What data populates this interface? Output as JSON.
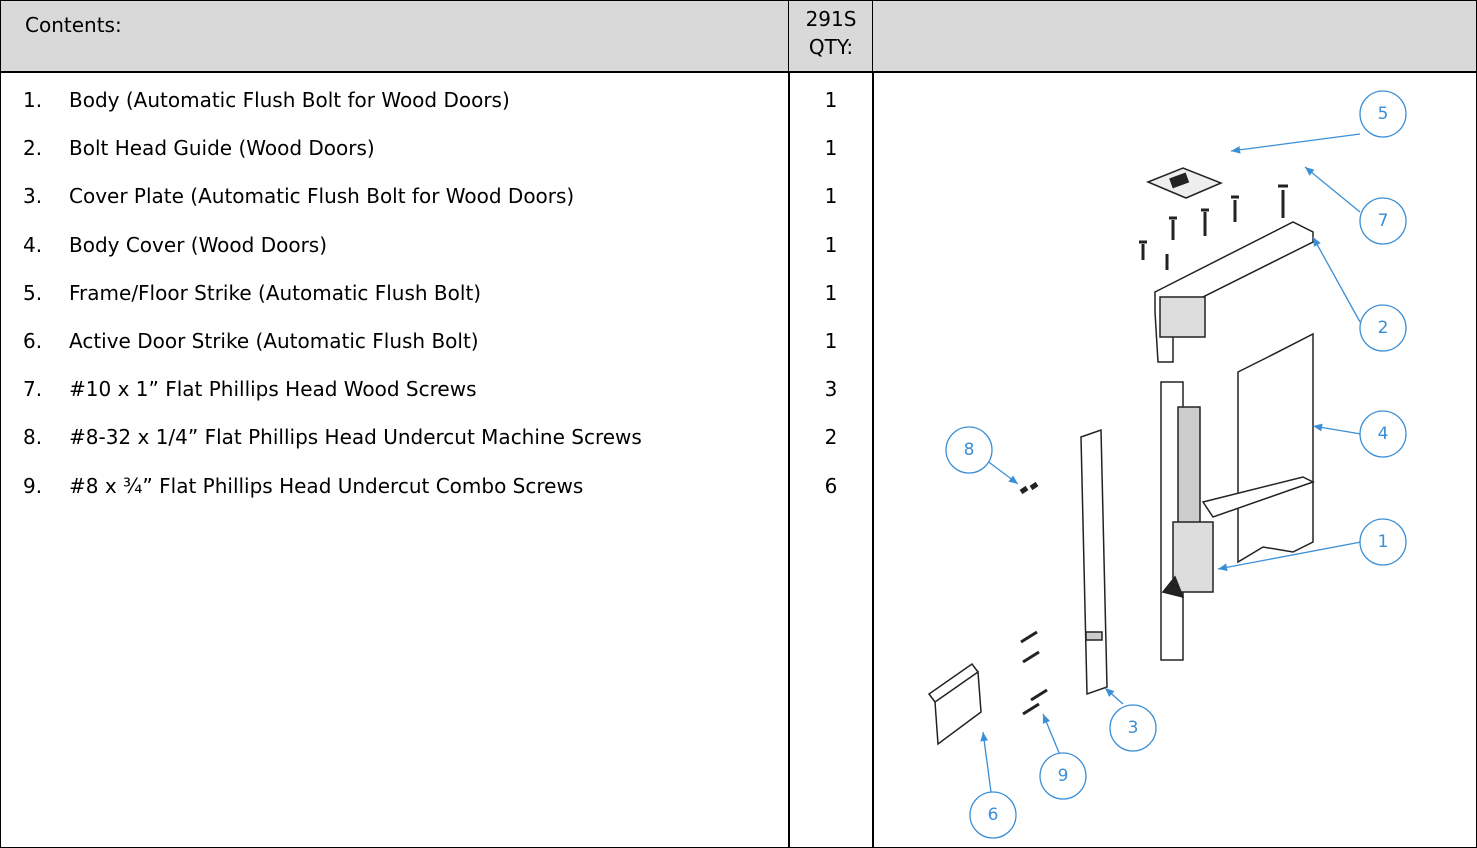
{
  "header": {
    "contents": "Contents:",
    "qty_line1": "291S",
    "qty_line2": "QTY:"
  },
  "items": [
    {
      "number": "1.",
      "description": "Body (Automatic Flush Bolt for Wood Doors)",
      "qty": 1
    },
    {
      "number": "2.",
      "description": "Bolt Head Guide (Wood Doors)",
      "qty": 1
    },
    {
      "number": "3.",
      "description": "Cover Plate (Automatic Flush Bolt for Wood Doors)",
      "qty": 1
    },
    {
      "number": "4.",
      "description": "Body Cover (Wood Doors)",
      "qty": 1
    },
    {
      "number": "5.",
      "description": "Frame/Floor Strike (Automatic Flush Bolt)",
      "qty": 1
    },
    {
      "number": "6.",
      "description": "Active Door Strike (Automatic Flush Bolt)",
      "qty": 1
    },
    {
      "number": "7.",
      "description": "#10 x 1” Flat Phillips Head Wood Screws",
      "qty": 3
    },
    {
      "number": "8.",
      "description": "#8-32 x 1/4” Flat Phillips Head Undercut Machine Screws",
      "qty": 2
    },
    {
      "number": "9.",
      "description": "#8 x ¾” Flat Phillips Head Undercut Combo Screws",
      "qty": 6
    }
  ],
  "diagram": {
    "callouts": [
      "5",
      "7",
      "2",
      "4",
      "1",
      "8",
      "3",
      "9",
      "6"
    ]
  }
}
